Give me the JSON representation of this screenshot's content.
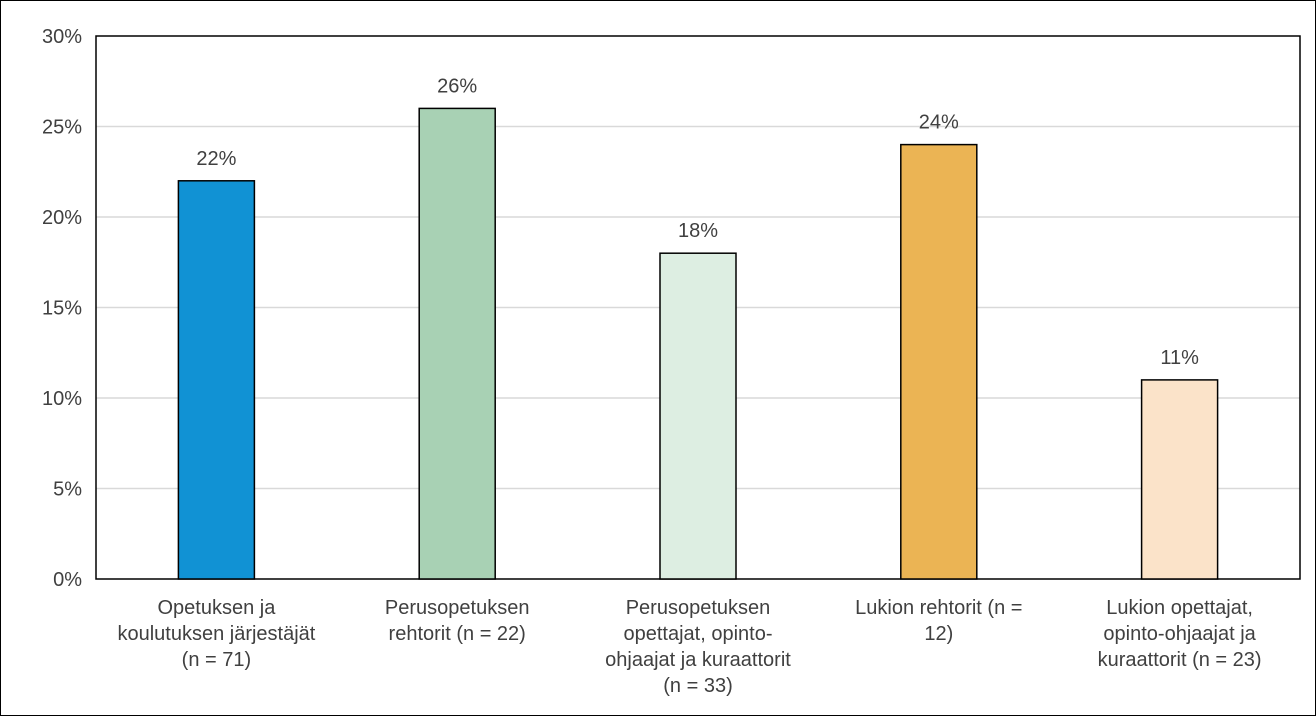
{
  "chart_data": {
    "type": "bar",
    "categories": [
      [
        "Opetuksen ja",
        "koulutuksen järjestäjät",
        "(n = 71)"
      ],
      [
        "Perusopetuksen",
        "rehtorit (n = 22)"
      ],
      [
        "Perusopetuksen",
        "opettajat, opinto-",
        "ohjaajat ja kuraattorit",
        "(n = 33)"
      ],
      [
        "Lukion rehtorit (n =",
        "12)"
      ],
      [
        "Lukion opettajat,",
        "opinto-ohjaajat ja",
        "kuraattorit (n = 23)"
      ]
    ],
    "values": [
      22,
      26,
      18,
      24,
      11
    ],
    "data_labels": [
      "22%",
      "26%",
      "18%",
      "24%",
      "11%"
    ],
    "colors": [
      "#1192d4",
      "#a8d1b4",
      "#ddeee2",
      "#ebb454",
      "#fbe3c9"
    ],
    "ylim": [
      0,
      30
    ],
    "yticks": [
      0,
      5,
      10,
      15,
      20,
      25,
      30
    ],
    "ytick_labels": [
      "0%",
      "5%",
      "10%",
      "15%",
      "20%",
      "25%",
      "30%"
    ],
    "grid": true,
    "title": "",
    "xlabel": "",
    "ylabel": ""
  }
}
